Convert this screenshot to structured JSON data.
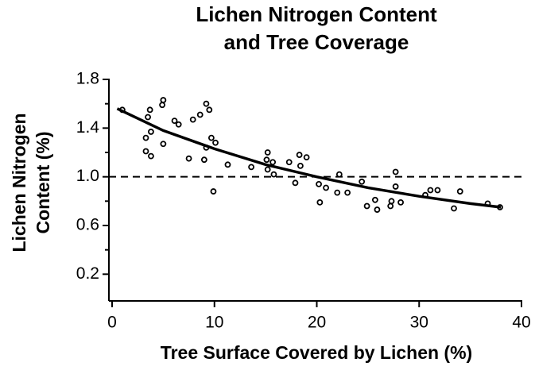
{
  "chart_data": {
    "type": "scatter",
    "title": [
      "Lichen Nitrogen Content",
      "and Tree Coverage"
    ],
    "xlabel": "Tree Surface Covered by Lichen (%)",
    "ylabel": [
      "Lichen Nitrogen",
      "Content (%)"
    ],
    "xlim": [
      0,
      40
    ],
    "ylim": [
      0,
      1.8
    ],
    "xticks": [
      0,
      10,
      20,
      30,
      40
    ],
    "yticks": [
      0.2,
      0.6,
      {
        "value": 1,
        "label": "1.0"
      },
      1.4,
      1.8
    ],
    "yminor_ticks": [
      0.4,
      0.8,
      1.2,
      1.6
    ],
    "reference_line": 1,
    "series": [
      {
        "color": "#000000",
        "x": [
          1.0,
          3.7,
          5.0,
          4.9,
          3.5,
          3.8,
          3.3,
          3.3,
          3.8,
          5.0,
          6.1,
          6.5,
          7.9,
          8.6,
          9.2,
          9.5,
          9.7,
          10.1,
          9.2,
          9.0,
          7.5,
          9.9,
          11.3,
          13.6,
          15.2,
          15.1,
          15.7,
          15.2,
          15.8,
          17.3,
          18.3,
          19.0,
          18.4,
          17.9,
          20.2,
          20.9,
          22.2,
          22.0,
          23.0,
          20.3,
          24.4,
          24.9,
          25.7,
          25.9,
          27.2,
          27.3,
          27.7,
          27.7,
          28.2,
          30.6,
          31.1,
          31.8,
          33.4,
          34.0,
          36.7,
          37.9
        ],
        "values": [
          1.55,
          1.55,
          1.63,
          1.59,
          1.49,
          1.37,
          1.32,
          1.21,
          1.17,
          1.27,
          1.46,
          1.43,
          1.47,
          1.51,
          1.6,
          1.55,
          1.32,
          1.28,
          1.24,
          1.14,
          1.15,
          0.88,
          1.1,
          1.08,
          1.2,
          1.14,
          1.12,
          1.06,
          1.02,
          1.12,
          1.18,
          1.16,
          1.09,
          0.95,
          0.94,
          0.91,
          1.02,
          0.87,
          0.87,
          0.79,
          0.96,
          0.76,
          0.81,
          0.73,
          0.76,
          0.8,
          1.04,
          0.92,
          0.79,
          0.85,
          0.89,
          0.89,
          0.74,
          0.88,
          0.78,
          0.75
        ]
      },
      {
        "type": "line",
        "color": "#000000",
        "x": [
          0.5,
          5,
          10,
          15,
          20,
          25,
          30,
          35,
          38
        ],
        "values": [
          1.56,
          1.38,
          1.23,
          1.1,
          1.0,
          0.91,
          0.84,
          0.78,
          0.75
        ]
      }
    ]
  }
}
